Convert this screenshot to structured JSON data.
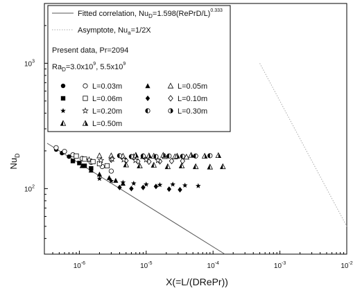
{
  "chart_data": {
    "type": "scatter",
    "title": "",
    "xlabel": "X(=L/(DRePr))",
    "ylabel_base": "Nu",
    "ylabel_sub": "D",
    "x_scale": "log",
    "y_scale": "log",
    "xlim": [
      3e-07,
      0.01
    ],
    "ylim": [
      30,
      3000
    ],
    "x_ticks": [
      {
        "value": 1e-06,
        "base": "10",
        "exp": "-6"
      },
      {
        "value": 1e-05,
        "base": "10",
        "exp": "-5"
      },
      {
        "value": 0.0001,
        "base": "10",
        "exp": "-4"
      },
      {
        "value": 0.001,
        "base": "10",
        "exp": "-3"
      },
      {
        "value": 0.01,
        "base": "10",
        "exp": "-2"
      }
    ],
    "y_ticks": [
      {
        "value": 100,
        "base": "10",
        "exp": "2"
      },
      {
        "value": 1000,
        "base": "10",
        "exp": "3"
      }
    ],
    "grid": false,
    "legend_position": "top-left",
    "lines": [
      {
        "name": "fitted",
        "style": "solid",
        "color": "#555555",
        "x": [
          3.3e-07,
          0.00015
        ],
        "y": [
          230,
          30
        ]
      },
      {
        "name": "asymptote",
        "style": "dotted",
        "color": "#aaaaaa",
        "x": [
          0.0005,
          0.01
        ],
        "y": [
          1000,
          50
        ]
      }
    ],
    "legend": {
      "fitted": {
        "pre": "Fitted correlation, Nu",
        "sub": "D",
        "mid": "=1.598(RePrD/L)",
        "sup": "0.333"
      },
      "asymptote": {
        "pre": "Asymptote, Nu",
        "sub": "a",
        "mid": "=1/2X"
      },
      "present": "Present data, Pr=2094",
      "ra": {
        "pre": "Ra",
        "sub": "D",
        "mid1": "=3.0x10",
        "sup1": "9",
        "mid2": ", 5.5x10",
        "sup2": "9"
      },
      "entries": [
        {
          "label": "L=0.03m",
          "symbols": [
            "circle-filled",
            "circle-open"
          ]
        },
        {
          "label": "L=0.05m",
          "symbols": [
            "triangle-filled",
            "triangle-open"
          ]
        },
        {
          "label": "L=0.06m",
          "symbols": [
            "square-filled",
            "square-open"
          ]
        },
        {
          "label": "L=0.10m",
          "symbols": [
            "diamond-filled",
            "diamond-open"
          ]
        },
        {
          "label": "L=0.20m",
          "symbols": [
            "star-filled",
            "star-open"
          ]
        },
        {
          "label": "L=0.30m",
          "symbols": [
            "halfcircle-left",
            "halfcircle-right"
          ]
        },
        {
          "label": "L=0.50m",
          "symbols": [
            "halftriangle-left",
            "halftriangle-right"
          ]
        }
      ]
    },
    "series": [
      {
        "symbol": "circle-filled",
        "x": [
          4.5e-07,
          5.5e-07,
          7e-07
        ],
        "y": [
          205,
          192,
          180
        ]
      },
      {
        "symbol": "circle-open",
        "x": [
          4.5e-07,
          6e-07,
          8e-07,
          1.1e-06,
          1.5e-06,
          2.2e-06,
          3e-06
        ],
        "y": [
          212,
          198,
          186,
          174,
          162,
          150,
          138
        ]
      },
      {
        "symbol": "square-filled",
        "x": [
          8e-07,
          1e-06,
          1.2e-06,
          1.5e-06
        ],
        "y": [
          166,
          160,
          152,
          145
        ]
      },
      {
        "symbol": "square-open",
        "x": [
          9e-07,
          1.2e-06,
          1.6e-06,
          2e-06,
          2.6e-06
        ],
        "y": [
          182,
          172,
          164,
          158,
          152
        ]
      },
      {
        "symbol": "triangle-filled",
        "x": [
          1.1e-06,
          1.5e-06,
          2e-06,
          2.8e-06,
          3.5e-06,
          4.5e-06
        ],
        "y": [
          152,
          140,
          130,
          122,
          116,
          110
        ]
      },
      {
        "symbol": "triangle-open",
        "x": [
          2e-06,
          3e-06,
          4.5e-06,
          6.5e-06,
          9e-06,
          1.3e-05,
          1.9e-05,
          2.7e-05,
          4e-05
        ],
        "y": [
          183,
          183,
          182,
          180,
          181,
          182,
          181,
          180,
          179
        ]
      },
      {
        "symbol": "diamond-filled",
        "x": [
          4e-06,
          6e-06,
          9e-06,
          1.4e-05,
          2.2e-05,
          3.2e-05
        ],
        "y": [
          102,
          100,
          102,
          104,
          99,
          98
        ]
      },
      {
        "symbol": "diamond-open",
        "x": [
          3e-06,
          5e-06,
          7.5e-06,
          1.1e-05,
          1.6e-05,
          2.4e-05,
          3.5e-05
        ],
        "y": [
          170,
          167,
          165,
          164,
          165,
          166,
          166
        ]
      },
      {
        "symbol": "star-filled",
        "x": [
          2e-06,
          3e-06,
          4.5e-06,
          6.5e-06,
          1e-05,
          1.6e-05,
          2.5e-05,
          3.8e-05,
          6e-05
        ],
        "y": [
          120,
          115,
          112,
          110,
          108,
          107,
          108,
          106,
          105
        ]
      },
      {
        "symbol": "star-open",
        "x": [
          1.4e-06,
          2.1e-06,
          3.1e-06,
          4.6e-06,
          6.9e-06,
          1e-05,
          1.5e-05
        ],
        "y": [
          170,
          168,
          172,
          170,
          168,
          170,
          168
        ]
      },
      {
        "symbol": "halfcircle-left",
        "x": [
          4e-06,
          6e-06,
          9e-06,
          1.4e-05,
          2.2e-05,
          3.5e-05,
          5.5e-05,
          9e-05
        ],
        "y": [
          183,
          180,
          182,
          180,
          182,
          181,
          182,
          183
        ]
      },
      {
        "symbol": "halftriangle-left",
        "x": [
          5e-06,
          8e-06,
          1.3e-05,
          2.1e-05,
          3.4e-05,
          5.5e-05,
          9e-05,
          0.00014
        ],
        "y": [
          155,
          152,
          154,
          150,
          152,
          150,
          149,
          150
        ]
      },
      {
        "symbol": "halftriangle-right",
        "x": [
          7e-06,
          1.1e-05,
          1.8e-05,
          2.9e-05,
          4.7e-05,
          7.5e-05,
          0.00012
        ],
        "y": [
          185,
          183,
          185,
          182,
          185,
          182,
          184
        ]
      }
    ]
  }
}
